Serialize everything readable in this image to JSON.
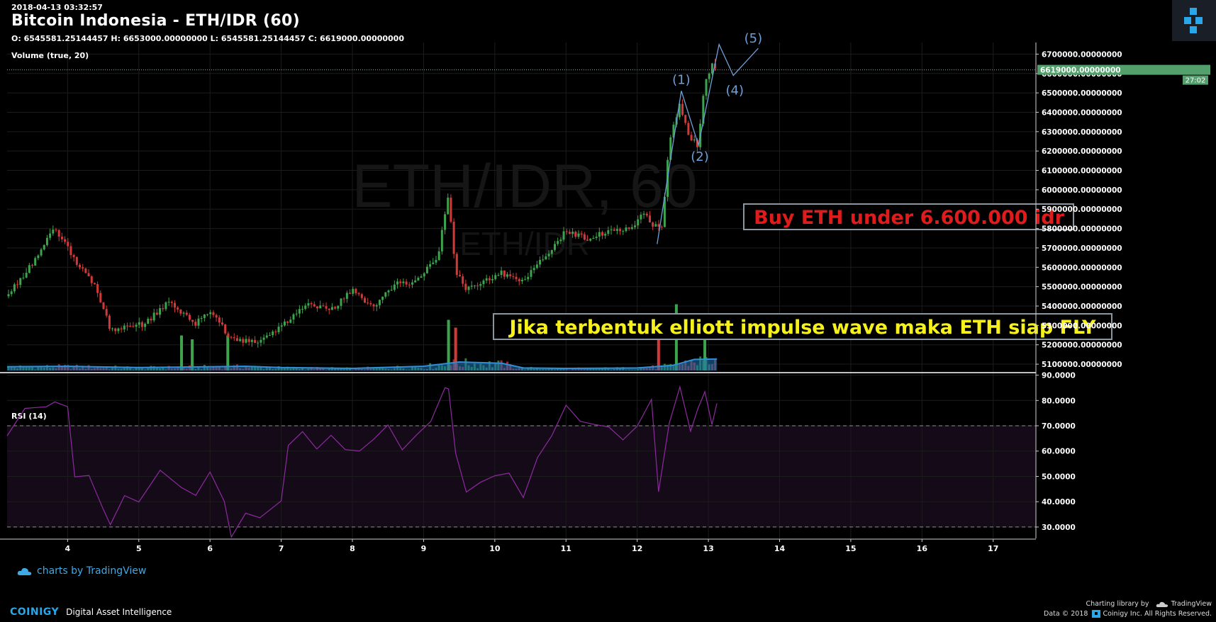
{
  "header": {
    "timestamp": "2018-04-13 03:32:57",
    "title": "Bitcoin Indonesia - ETH/IDR (60)",
    "ohlc": "O: 6545581.25144457 H: 6653000.00000000 L: 6545581.25144457 C: 6619000.00000000"
  },
  "watermark": {
    "main": "ETH/IDR, 60",
    "sub": "ETH/IDR"
  },
  "credits": {
    "tradingview": "charts by TradingView",
    "brand": "COINIGY",
    "tagline": "Digital Asset Intelligence",
    "library_prefix": "Charting library by",
    "library_name": "TradingView",
    "copyright_prefix": "Data © 2018",
    "copyright_suffix": "Coinigy Inc. All Rights Reserved."
  },
  "colors": {
    "background": "#000000",
    "grid": "#1c1c1c",
    "up": "#3da34d",
    "down": "#d23a3a",
    "wave": "#6f9fd8",
    "rsi_line": "#8e2aa0",
    "rsi_fill": "#150a18",
    "volume_ma": "#1f72b8",
    "price_label_bg": "#53a06c",
    "annotation_red": "#e01b1b",
    "annotation_yellow": "#f6f11b",
    "coinigy": "#2aa7e8"
  },
  "chart_data": [
    {
      "type": "candlestick",
      "title": "Bitcoin Indonesia - ETH/IDR (60)",
      "xlabel": "",
      "ylabel": "",
      "x_ticks": [
        "4",
        "5",
        "6",
        "7",
        "8",
        "9",
        "10",
        "11",
        "12",
        "13",
        "14",
        "15",
        "16",
        "17"
      ],
      "x_range": [
        3.15,
        17.6
      ],
      "ylim": [
        5060000,
        6760000
      ],
      "y_ticks": [
        "5100000.00000000",
        "5200000.00000000",
        "5300000.00000000",
        "5400000.00000000",
        "5500000.00000000",
        "5600000.00000000",
        "5700000.00000000",
        "5800000.00000000",
        "5900000.00000000",
        "6000000.00000000",
        "6100000.00000000",
        "6200000.00000000",
        "6300000.00000000",
        "6400000.00000000",
        "6500000.00000000",
        "6600000.00000000",
        "6700000.00000000"
      ],
      "last_price": 6619000,
      "last_price_label": "6619000.00000000",
      "countdown_label": "27:02",
      "price_path": [
        [
          3.15,
          5450000
        ],
        [
          3.5,
          5620000
        ],
        [
          3.82,
          5800000
        ],
        [
          4.1,
          5640000
        ],
        [
          4.4,
          5500000
        ],
        [
          4.6,
          5280000
        ],
        [
          5.1,
          5310000
        ],
        [
          5.4,
          5420000
        ],
        [
          5.8,
          5310000
        ],
        [
          6.0,
          5380000
        ],
        [
          6.3,
          5230000
        ],
        [
          6.6,
          5210000
        ],
        [
          6.9,
          5270000
        ],
        [
          7.4,
          5410000
        ],
        [
          7.7,
          5380000
        ],
        [
          8.0,
          5480000
        ],
        [
          8.3,
          5390000
        ],
        [
          8.6,
          5510000
        ],
        [
          8.9,
          5530000
        ],
        [
          9.2,
          5650000
        ],
        [
          9.35,
          5980000
        ],
        [
          9.45,
          5580000
        ],
        [
          9.6,
          5490000
        ],
        [
          9.9,
          5540000
        ],
        [
          10.1,
          5570000
        ],
        [
          10.4,
          5530000
        ],
        [
          10.7,
          5650000
        ],
        [
          11.0,
          5790000
        ],
        [
          11.3,
          5750000
        ],
        [
          11.6,
          5780000
        ],
        [
          11.9,
          5800000
        ],
        [
          12.1,
          5880000
        ],
        [
          12.25,
          5810000
        ],
        [
          12.35,
          5800000
        ],
        [
          12.45,
          6250000
        ],
        [
          12.6,
          6450000
        ],
        [
          12.72,
          6270000
        ],
        [
          12.85,
          6230000
        ],
        [
          12.95,
          6550000
        ],
        [
          13.05,
          6640000
        ],
        [
          13.12,
          6620000
        ]
      ],
      "volume_study": {
        "label": "Volume (true, 20)",
        "ma_path": [
          [
            3.15,
            0.09
          ],
          [
            4.0,
            0.1
          ],
          [
            5.0,
            0.07
          ],
          [
            6.0,
            0.09
          ],
          [
            6.5,
            0.1
          ],
          [
            7.0,
            0.07
          ],
          [
            8.0,
            0.05
          ],
          [
            9.0,
            0.1
          ],
          [
            9.5,
            0.2
          ],
          [
            10.1,
            0.17
          ],
          [
            10.4,
            0.06
          ],
          [
            11.0,
            0.05
          ],
          [
            12.0,
            0.06
          ],
          [
            12.5,
            0.12
          ],
          [
            12.8,
            0.26
          ],
          [
            13.12,
            0.27
          ]
        ],
        "spikes": [
          [
            5.6,
            0.45,
            "up"
          ],
          [
            5.75,
            0.4,
            "up"
          ],
          [
            6.25,
            0.45,
            "up"
          ],
          [
            9.35,
            0.65,
            "up"
          ],
          [
            9.45,
            0.55,
            "down"
          ],
          [
            12.3,
            0.6,
            "down"
          ],
          [
            12.55,
            0.85,
            "up"
          ],
          [
            12.95,
            0.4,
            "up"
          ]
        ]
      },
      "annotations": [
        {
          "text": "Buy ETH under 6.600.000 idr",
          "color": "red"
        },
        {
          "text": "Jika terbentuk elliott impulse wave maka ETH siap FLY",
          "color": "yellow"
        }
      ],
      "elliott_wave": {
        "points": [
          [
            12.28,
            5720000
          ],
          [
            12.62,
            6510000
          ],
          [
            12.86,
            6230000
          ],
          [
            13.15,
            6750000
          ],
          [
            13.35,
            6590000
          ],
          [
            13.7,
            6730000
          ]
        ],
        "labels": [
          "(1)",
          "(2)",
          "(4)",
          "(5)"
        ]
      }
    },
    {
      "type": "line",
      "title": "RSI (14)",
      "xlabel": "",
      "ylabel": "",
      "ylim": [
        25.5,
        91
      ],
      "y_ticks": [
        "30.0000",
        "40.0000",
        "50.0000",
        "60.0000",
        "70.0000",
        "80.0000",
        "90.0000"
      ],
      "bands": [
        30,
        70
      ],
      "series": [
        {
          "values": [
            [
              3.15,
              66
            ],
            [
              3.4,
              75
            ],
            [
              3.7,
              80
            ],
            [
              3.82,
              78
            ],
            [
              4.0,
              77
            ],
            [
              4.1,
              52
            ],
            [
              4.3,
              48
            ],
            [
              4.5,
              38
            ],
            [
              4.6,
              32
            ],
            [
              4.8,
              40
            ],
            [
              5.0,
              42
            ],
            [
              5.3,
              52
            ],
            [
              5.6,
              44
            ],
            [
              5.8,
              45
            ],
            [
              6.0,
              50
            ],
            [
              6.2,
              40
            ],
            [
              6.3,
              28
            ],
            [
              6.5,
              33
            ],
            [
              6.7,
              35
            ],
            [
              7.0,
              41
            ],
            [
              7.1,
              60
            ],
            [
              7.3,
              70
            ],
            [
              7.5,
              60
            ],
            [
              7.7,
              65
            ],
            [
              7.9,
              63
            ],
            [
              8.1,
              58
            ],
            [
              8.3,
              65
            ],
            [
              8.5,
              72
            ],
            [
              8.7,
              58
            ],
            [
              8.9,
              68
            ],
            [
              9.1,
              72
            ],
            [
              9.3,
              83
            ],
            [
              9.35,
              87
            ],
            [
              9.45,
              58
            ],
            [
              9.6,
              43
            ],
            [
              9.8,
              50
            ],
            [
              10.0,
              48
            ],
            [
              10.2,
              52
            ],
            [
              10.4,
              43
            ],
            [
              10.6,
              55
            ],
            [
              10.8,
              68
            ],
            [
              11.0,
              78
            ],
            [
              11.2,
              70
            ],
            [
              11.4,
              73
            ],
            [
              11.6,
              68
            ],
            [
              11.8,
              64
            ],
            [
              12.0,
              72
            ],
            [
              12.2,
              78
            ],
            [
              12.3,
              45
            ],
            [
              12.45,
              72
            ],
            [
              12.6,
              83
            ],
            [
              12.75,
              70
            ],
            [
              12.85,
              76
            ],
            [
              12.95,
              82
            ],
            [
              13.05,
              73
            ],
            [
              13.12,
              77
            ]
          ]
        }
      ]
    }
  ]
}
